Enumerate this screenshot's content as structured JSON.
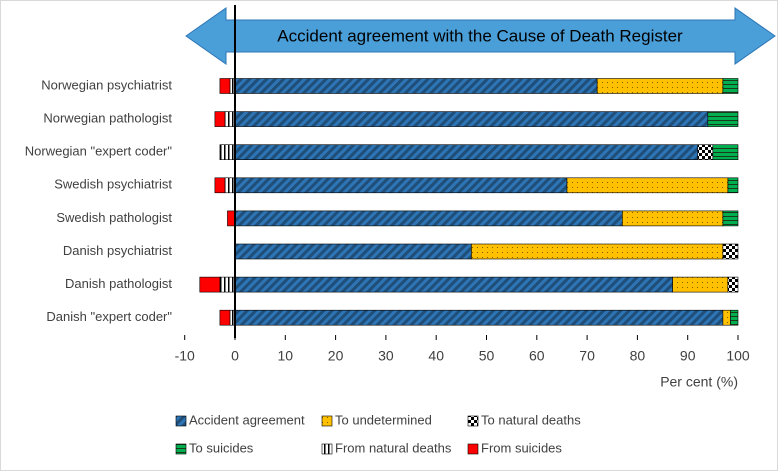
{
  "chart_data": {
    "type": "stacked-bar-horizontal",
    "annotation": "Accident agreement with the Cause of Death Register",
    "x_label": "Per cent (%)",
    "categories": [
      "Norwegian psychiatrist",
      "Norwegian pathologist",
      "Norwegian \"expert coder\"",
      "Swedish psychiatrist",
      "Swedish pathologist",
      "Danish psychiatrist",
      "Danish pathologist",
      "Danish \"expert coder\""
    ],
    "series": [
      {
        "name": "Accident agreement",
        "color": "#1f4e79",
        "pattern": "diagonal",
        "values": [
          72,
          94,
          92,
          66,
          77,
          47,
          87,
          97
        ]
      },
      {
        "name": "To undetermined",
        "color": "#ffc000",
        "pattern": "dots",
        "values": [
          25,
          0,
          0,
          32,
          20,
          50,
          11,
          1.5
        ]
      },
      {
        "name": "To natural deaths",
        "color": "#ffffff",
        "pattern": "checker",
        "values": [
          0,
          0,
          3,
          0,
          0,
          3,
          2,
          0
        ]
      },
      {
        "name": "To suicides",
        "color": "#00b050",
        "pattern": "horizontal",
        "values": [
          3,
          6,
          5,
          2,
          3,
          0,
          0,
          1.5
        ]
      },
      {
        "name": "From natural deaths",
        "color": "#ffffff",
        "pattern": "vertical",
        "values": [
          -1,
          -2,
          -3,
          -2,
          0,
          0,
          -3,
          -1
        ]
      },
      {
        "name": "From suicides",
        "color": "#ff0000",
        "pattern": "solid",
        "values": [
          -2,
          -2,
          0,
          -2,
          -1.5,
          0,
          -4,
          -2
        ]
      }
    ],
    "xlim": [
      -10,
      100
    ],
    "xticks": [
      -10,
      0,
      10,
      20,
      30,
      40,
      50,
      60,
      70,
      80,
      90,
      100
    ]
  }
}
